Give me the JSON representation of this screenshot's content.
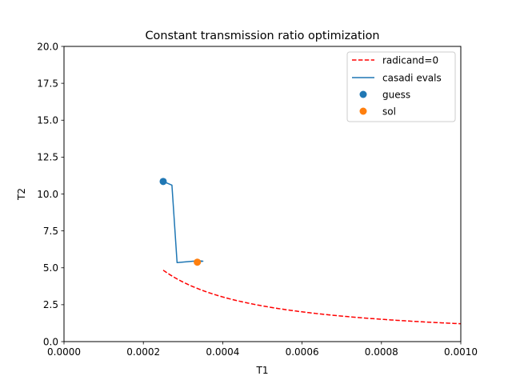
{
  "chart_data": {
    "type": "line",
    "title": "Constant transmission ratio optimization",
    "xlabel": "T1",
    "ylabel": "T2",
    "xlim": [
      0,
      0.001
    ],
    "ylim": [
      0,
      20
    ],
    "x_ticks": [
      0,
      0.0002,
      0.0004,
      0.0006,
      0.0008,
      0.001
    ],
    "x_tick_labels": [
      "0.0000",
      "0.0002",
      "0.0004",
      "0.0006",
      "0.0008",
      "0.0010"
    ],
    "y_ticks": [
      0,
      2.5,
      5,
      7.5,
      10,
      12.5,
      15,
      17.5,
      20
    ],
    "y_tick_labels": [
      "0.0",
      "2.5",
      "5.0",
      "7.5",
      "10.0",
      "12.5",
      "15.0",
      "17.5",
      "20.0"
    ],
    "grid": false,
    "legend_position": "top-right",
    "series": [
      {
        "name": "radicand=0",
        "kind": "dashed-line",
        "color": "#ff0000",
        "curve": "T2 = 0.00121 / T1",
        "x_range": [
          0.00025,
          0.001
        ]
      },
      {
        "name": "casadi evals",
        "kind": "line",
        "color": "#1f77b4",
        "x": [
          0.00025,
          0.000272,
          0.000285,
          0.00034,
          0.00035,
          0.000336
        ],
        "y": [
          10.85,
          10.6,
          5.35,
          5.48,
          5.45,
          5.4
        ]
      },
      {
        "name": "guess",
        "kind": "scatter",
        "color": "#1f77b4",
        "x": [
          0.00025
        ],
        "y": [
          10.85
        ]
      },
      {
        "name": "sol",
        "kind": "scatter",
        "color": "#ff7f0e",
        "x": [
          0.000336
        ],
        "y": [
          5.38
        ]
      }
    ]
  }
}
